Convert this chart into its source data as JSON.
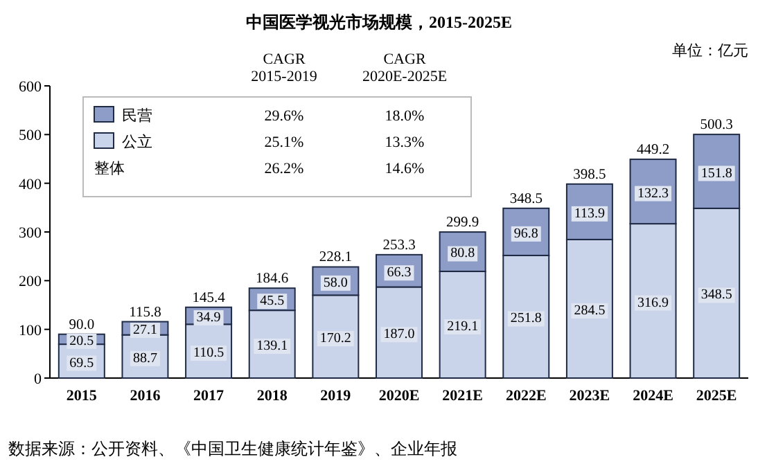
{
  "chart_data": {
    "type": "bar",
    "title": "中国医学视光市场规模，2015-2025E",
    "stacked": true,
    "categories": [
      "2015",
      "2016",
      "2017",
      "2018",
      "2019",
      "2020E",
      "2021E",
      "2022E",
      "2023E",
      "2024E",
      "2025E"
    ],
    "series": [
      {
        "name": "公立",
        "color": "#c9d3ea",
        "values": [
          69.5,
          88.7,
          110.5,
          139.1,
          170.2,
          187.0,
          219.1,
          251.8,
          284.5,
          316.9,
          348.5
        ],
        "value_labels": [
          "69.5",
          "88.7",
          "110.5",
          "139.1",
          "170.2",
          "187.0",
          "219.1",
          "251.8",
          "284.5",
          "316.9",
          "348.5"
        ]
      },
      {
        "name": "民营",
        "color": "#8d9dc8",
        "values": [
          20.5,
          27.1,
          34.9,
          45.5,
          58.0,
          66.3,
          80.8,
          96.8,
          113.9,
          132.3,
          151.8
        ],
        "value_labels": [
          "20.5",
          "27.1",
          "34.9",
          "45.5",
          "58.0",
          "66.3",
          "80.8",
          "96.8",
          "113.9",
          "132.3",
          "151.8"
        ]
      }
    ],
    "totals": [
      "90.0",
      "115.8",
      "145.4",
      "184.6",
      "228.1",
      "253.3",
      "299.9",
      "348.5",
      "398.5",
      "449.2",
      "500.3"
    ],
    "ylim": [
      0,
      600
    ],
    "yticks": [
      0,
      100,
      200,
      300,
      400,
      500,
      600
    ],
    "grid": false,
    "legend": "top left",
    "annotations": [
      "CAGR\n2015-2019",
      "CAGR\n2020E-2025E",
      "29.6%",
      "18.0%",
      "25.1%",
      "13.3%",
      "整体",
      "26.2%",
      "14.6%",
      "单位：亿元",
      "数据来源：公开资料、《中国卫生健康统计年鉴》、企业年报"
    ]
  }
}
